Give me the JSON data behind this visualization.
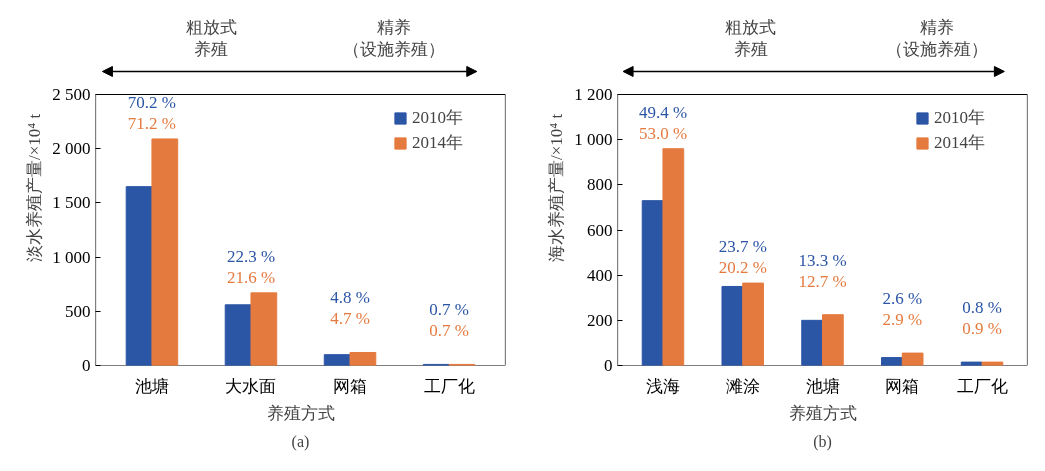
{
  "chart_data": [
    {
      "type": "bar",
      "categories": [
        "池塘",
        "大水面",
        "网箱",
        "工厂化"
      ],
      "xlabel": "养殖方式",
      "ylabel": "淡水养殖产量/×10⁴ t",
      "ylim": [
        0,
        2500
      ],
      "yticks": [
        0,
        500,
        {
          "value": 1000,
          "label": "1 000"
        },
        {
          "value": 1500,
          "label": "1 500"
        },
        {
          "value": 2000,
          "label": "2 000"
        },
        {
          "value": 2500,
          "label": "2 500"
        }
      ],
      "series": [
        {
          "name": "2010年",
          "color": "#2b55a5",
          "values": [
            1650,
            560,
            100,
            10
          ]
        },
        {
          "name": "2014年",
          "color": "#e57a3f",
          "values": [
            2090,
            670,
            120,
            10
          ]
        }
      ],
      "annotations": [
        "粗放式",
        "养殖",
        "精养",
        "（设施养殖）",
        "(a)",
        "70.2 %",
        "71.2 %",
        "22.3 %",
        "21.6 %",
        "4.8 %",
        "4.7 %",
        "0.7 %",
        "0.7 %"
      ],
      "legend": "top right"
    },
    {
      "type": "bar",
      "categories": [
        "浅海",
        "滩涂",
        "池塘",
        "网箱",
        "工厂化"
      ],
      "xlabel": "养殖方式",
      "ylabel": "海水养殖产量/×10⁴ t",
      "ylim": [
        0,
        1200
      ],
      "yticks": [
        0,
        200,
        400,
        600,
        800,
        {
          "value": 1000,
          "label": "1 000"
        },
        {
          "value": 1200,
          "label": "1 200"
        }
      ],
      "series": [
        {
          "name": "2010年",
          "color": "#2b55a5",
          "values": [
            730,
            350,
            200,
            35,
            15
          ]
        },
        {
          "name": "2014年",
          "color": "#e57a3f",
          "values": [
            960,
            365,
            225,
            55,
            15
          ]
        }
      ],
      "annotations": [
        "粗放式",
        "养殖",
        "精养",
        "（设施养殖）",
        "(b)",
        "49.4 %",
        "53.0 %",
        "23.7 %",
        "20.2 %",
        "13.3 %",
        "12.7 %",
        "2.6 %",
        "2.9 %",
        "0.8 %",
        "0.9 %"
      ],
      "legend": "top right"
    }
  ]
}
